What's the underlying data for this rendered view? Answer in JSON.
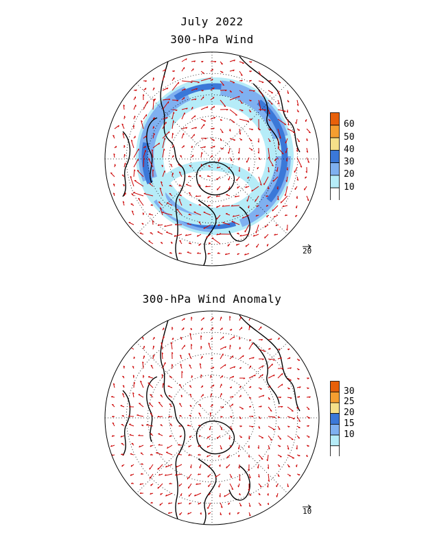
{
  "header": {
    "line1": "July 2022",
    "line2": "300-hPa Wind"
  },
  "panels": [
    {
      "id": "wind",
      "title": "300-hPa Wind",
      "colorbar": {
        "labels": [
          "60",
          "50",
          "40",
          "30",
          "20",
          "10"
        ],
        "colors": [
          "#e8600a",
          "#f59e30",
          "#f5e08a",
          "#3b78d8",
          "#7fb0f0",
          "#b6ecf8",
          "#ffffff"
        ]
      },
      "ref_vector_label": "20",
      "jet_levels": [
        "#b6ecf8",
        "#7fb0f0",
        "#3b78d8"
      ]
    },
    {
      "id": "anomaly",
      "title": "300-hPa Wind Anomaly",
      "colorbar": {
        "labels": [
          "30",
          "25",
          "20",
          "15",
          "10"
        ],
        "colors": [
          "#e8600a",
          "#f59e30",
          "#f5e08a",
          "#3b78d8",
          "#7fb0f0",
          "#b6ecf8",
          "#ffffff"
        ]
      },
      "ref_vector_label": "10"
    }
  ],
  "vector_color": "#cc0000",
  "coast_color": "#000000"
}
